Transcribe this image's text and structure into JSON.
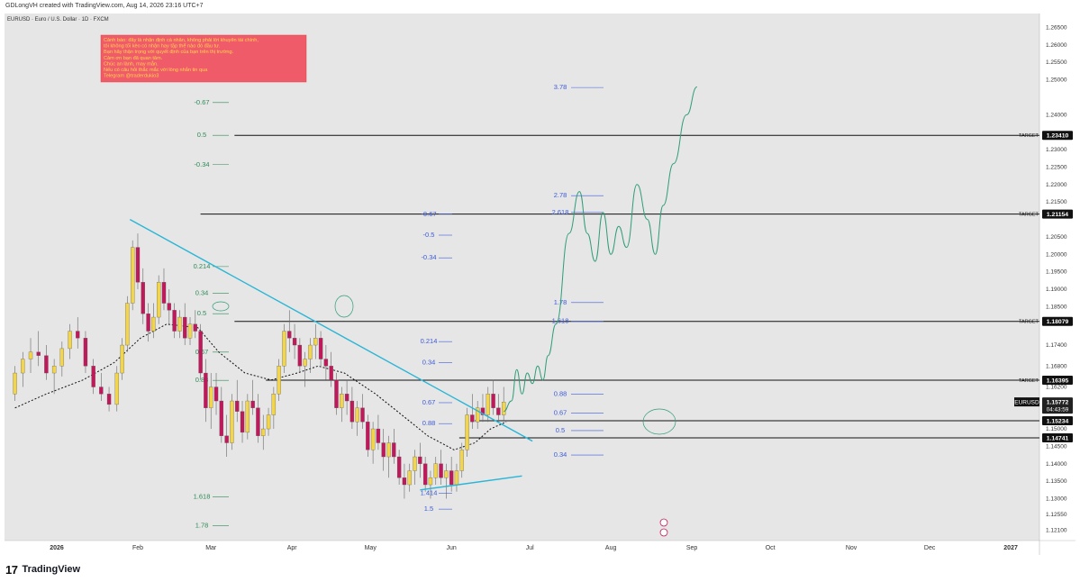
{
  "header": "GDLongVH created with TradingView.com, Aug 14, 2026 23:16 UTC+7",
  "symbol_title": "EURUSD · Euro / U.S. Dollar · 1D · FXCM",
  "warning_lines": [
    "Cảnh báo: đây là nhận định cá nhân, không phải lời khuyên tài chính,",
    "tôi không tối kèo có nhận hay tặp thể nào đó đầu tư.",
    "Bạn hãy thận trọng với quyết định của bạn trên thị trường.",
    "Cảm ơn bạn đã quan tâm.",
    "Chúc an lành, may mắn.",
    "Nếu có câu hỏi thắc mắc với lòng nhắn tin qua",
    "Telegram @traderdukio3"
  ],
  "colors": {
    "bg": "#e6e6e6",
    "up": "#f2d54a",
    "down": "#c2185b",
    "trend": "#29b6d6",
    "proj": "#2e9d77",
    "fib_green": "#2e8b57",
    "fib_blue": "#3b5bdb",
    "warn_bg": "#ef5b68",
    "warn_text": "#ffd54f",
    "ma": "#111111"
  },
  "footer": {
    "brand": "TradingView",
    "logo": "17"
  },
  "chart_data": {
    "type": "candlestick",
    "symbol": "EURUSD",
    "timeframe": "1D",
    "ylim": [
      1.118,
      1.269
    ],
    "x_axis_labels": [
      "2026",
      "Feb",
      "Mar",
      "Apr",
      "May",
      "Jun",
      "Jul",
      "Aug",
      "Sep",
      "Oct",
      "Nov",
      "Dec",
      "2027"
    ],
    "x_axis_label_days": [
      0,
      31,
      59,
      90,
      120,
      151,
      181,
      212,
      243,
      273,
      304,
      334,
      365
    ],
    "y_ticks": [
      "1.26500",
      "1.26000",
      "1.25500",
      "1.25000",
      "1.24000",
      "1.23000",
      "1.22500",
      "1.22000",
      "1.21500",
      "1.20500",
      "1.20000",
      "1.19500",
      "1.19000",
      "1.18500",
      "1.17400",
      "1.16800",
      "1.16200",
      "1.15500",
      "1.15000",
      "1.14500",
      "1.14000",
      "1.13500",
      "1.13000",
      "1.12550",
      "1.12100"
    ],
    "y_tick_values": [
      1.265,
      1.26,
      1.255,
      1.25,
      1.24,
      1.23,
      1.225,
      1.22,
      1.215,
      1.205,
      1.2,
      1.195,
      1.19,
      1.185,
      1.174,
      1.168,
      1.162,
      1.155,
      1.15,
      1.145,
      1.14,
      1.135,
      1.13,
      1.1255,
      1.121
    ],
    "levels": [
      {
        "label": "TARGET",
        "value": "1.23410",
        "day_start": 68
      },
      {
        "label": "TARGET",
        "value": "1.21154",
        "day_start": 55
      },
      {
        "label": "TARGET",
        "value": "1.18079",
        "day_start": 68
      },
      {
        "label": "TARGET",
        "value": "1.16395",
        "day_start": 80
      },
      {
        "label": "",
        "value": "1.15234",
        "day_start": 160
      },
      {
        "label": "",
        "value": "1.14741",
        "day_start": 154
      }
    ],
    "current": {
      "symbol": "EURUSD",
      "price": "1.15772",
      "countdown": "04:43:59"
    },
    "fib_left": [
      {
        "label": "-0.67",
        "price": 1.2435
      },
      {
        "label": "0.5",
        "price": 1.2341
      },
      {
        "label": "-0.34",
        "price": 1.2257
      },
      {
        "label": "0.214",
        "price": 1.1965
      },
      {
        "label": "0.34",
        "price": 1.1888
      },
      {
        "label": "0.5",
        "price": 1.183
      },
      {
        "label": "0.67",
        "price": 1.172
      },
      {
        "label": "0.88",
        "price": 1.1639
      },
      {
        "label": "1.618",
        "price": 1.1305
      },
      {
        "label": "1.78",
        "price": 1.1222
      }
    ],
    "fib_mid": [
      {
        "label": "-0.67",
        "price": 1.2115
      },
      {
        "label": "-0.5",
        "price": 1.2055
      },
      {
        "label": "-0.34",
        "price": 1.199
      },
      {
        "label": "0.214",
        "price": 1.175
      },
      {
        "label": "0.34",
        "price": 1.169
      },
      {
        "label": "0.67",
        "price": 1.1575
      },
      {
        "label": "0.88",
        "price": 1.1515
      },
      {
        "label": "1.414",
        "price": 1.1315
      },
      {
        "label": "1.5",
        "price": 1.127
      }
    ],
    "fib_right": [
      {
        "label": "3.78",
        "price": 1.2478
      },
      {
        "label": "2.78",
        "price": 1.2168
      },
      {
        "label": "2.618",
        "price": 1.212
      },
      {
        "label": "1.78",
        "price": 1.1862
      },
      {
        "label": "1.618",
        "price": 1.1808
      },
      {
        "label": "0.88",
        "price": 1.16
      },
      {
        "label": "0.67",
        "price": 1.1545
      },
      {
        "label": "0.5",
        "price": 1.1495
      },
      {
        "label": "0.34",
        "price": 1.1425
      }
    ],
    "series": [
      {
        "name": "",
        "kind": "candles",
        "values": [
          [
            -16,
            1.16,
            1.168,
            1.158,
            1.166
          ],
          [
            -13,
            1.166,
            1.172,
            1.162,
            1.17
          ],
          [
            -10,
            1.17,
            1.176,
            1.166,
            1.172
          ],
          [
            -7,
            1.172,
            1.178,
            1.168,
            1.171
          ],
          [
            -4,
            1.171,
            1.174,
            1.164,
            1.166
          ],
          [
            -1,
            1.166,
            1.17,
            1.16,
            1.168
          ],
          [
            2,
            1.168,
            1.175,
            1.165,
            1.173
          ],
          [
            5,
            1.173,
            1.18,
            1.17,
            1.178
          ],
          [
            8,
            1.178,
            1.182,
            1.173,
            1.176
          ],
          [
            11,
            1.176,
            1.178,
            1.166,
            1.168
          ],
          [
            14,
            1.168,
            1.17,
            1.16,
            1.162
          ],
          [
            17,
            1.162,
            1.166,
            1.158,
            1.16
          ],
          [
            20,
            1.16,
            1.162,
            1.155,
            1.157
          ],
          [
            23,
            1.157,
            1.168,
            1.155,
            1.166
          ],
          [
            25,
            1.166,
            1.176,
            1.164,
            1.174
          ],
          [
            27,
            1.174,
            1.188,
            1.172,
            1.186
          ],
          [
            29,
            1.186,
            1.204,
            1.184,
            1.202
          ],
          [
            31,
            1.202,
            1.206,
            1.19,
            1.192
          ],
          [
            33,
            1.192,
            1.196,
            1.18,
            1.183
          ],
          [
            35,
            1.183,
            1.186,
            1.175,
            1.178
          ],
          [
            37,
            1.178,
            1.186,
            1.176,
            1.182
          ],
          [
            39,
            1.182,
            1.194,
            1.18,
            1.192
          ],
          [
            41,
            1.192,
            1.196,
            1.184,
            1.186
          ],
          [
            43,
            1.186,
            1.19,
            1.18,
            1.184
          ],
          [
            45,
            1.184,
            1.186,
            1.176,
            1.178
          ],
          [
            47,
            1.178,
            1.184,
            1.176,
            1.182
          ],
          [
            49,
            1.182,
            1.186,
            1.174,
            1.176
          ],
          [
            51,
            1.176,
            1.182,
            1.174,
            1.18
          ],
          [
            53,
            1.18,
            1.184,
            1.176,
            1.178
          ],
          [
            55,
            1.178,
            1.18,
            1.164,
            1.166
          ],
          [
            57,
            1.166,
            1.17,
            1.152,
            1.156
          ],
          [
            59,
            1.156,
            1.166,
            1.15,
            1.162
          ],
          [
            61,
            1.162,
            1.166,
            1.154,
            1.158
          ],
          [
            63,
            1.158,
            1.162,
            1.146,
            1.148
          ],
          [
            65,
            1.148,
            1.154,
            1.142,
            1.146
          ],
          [
            67,
            1.146,
            1.16,
            1.144,
            1.158
          ],
          [
            69,
            1.158,
            1.164,
            1.152,
            1.155
          ],
          [
            71,
            1.155,
            1.158,
            1.146,
            1.149
          ],
          [
            73,
            1.149,
            1.16,
            1.147,
            1.158
          ],
          [
            75,
            1.158,
            1.164,
            1.154,
            1.156
          ],
          [
            77,
            1.156,
            1.16,
            1.146,
            1.148
          ],
          [
            79,
            1.148,
            1.154,
            1.144,
            1.15
          ],
          [
            81,
            1.15,
            1.156,
            1.148,
            1.154
          ],
          [
            83,
            1.154,
            1.162,
            1.15,
            1.16
          ],
          [
            85,
            1.16,
            1.17,
            1.158,
            1.168
          ],
          [
            87,
            1.168,
            1.18,
            1.166,
            1.178
          ],
          [
            89,
            1.178,
            1.184,
            1.172,
            1.176
          ],
          [
            91,
            1.176,
            1.18,
            1.17,
            1.174
          ],
          [
            93,
            1.174,
            1.176,
            1.166,
            1.168
          ],
          [
            95,
            1.168,
            1.172,
            1.162,
            1.17
          ],
          [
            97,
            1.17,
            1.176,
            1.166,
            1.174
          ],
          [
            99,
            1.174,
            1.18,
            1.17,
            1.176
          ],
          [
            101,
            1.176,
            1.178,
            1.168,
            1.17
          ],
          [
            103,
            1.17,
            1.174,
            1.164,
            1.168
          ],
          [
            105,
            1.168,
            1.172,
            1.162,
            1.164
          ],
          [
            107,
            1.164,
            1.166,
            1.154,
            1.156
          ],
          [
            109,
            1.156,
            1.162,
            1.152,
            1.16
          ],
          [
            111,
            1.16,
            1.164,
            1.154,
            1.158
          ],
          [
            113,
            1.158,
            1.162,
            1.15,
            1.152
          ],
          [
            115,
            1.152,
            1.158,
            1.148,
            1.156
          ],
          [
            117,
            1.156,
            1.16,
            1.15,
            1.152
          ],
          [
            119,
            1.152,
            1.154,
            1.142,
            1.144
          ],
          [
            121,
            1.144,
            1.152,
            1.14,
            1.15
          ],
          [
            123,
            1.15,
            1.154,
            1.144,
            1.146
          ],
          [
            125,
            1.146,
            1.15,
            1.138,
            1.142
          ],
          [
            127,
            1.142,
            1.148,
            1.136,
            1.146
          ],
          [
            129,
            1.146,
            1.15,
            1.14,
            1.142
          ],
          [
            131,
            1.142,
            1.144,
            1.134,
            1.136
          ],
          [
            133,
            1.136,
            1.14,
            1.13,
            1.134
          ],
          [
            135,
            1.134,
            1.14,
            1.132,
            1.138
          ],
          [
            137,
            1.138,
            1.144,
            1.134,
            1.142
          ],
          [
            139,
            1.142,
            1.146,
            1.136,
            1.14
          ],
          [
            141,
            1.14,
            1.142,
            1.132,
            1.134
          ],
          [
            143,
            1.134,
            1.138,
            1.13,
            1.136
          ],
          [
            145,
            1.136,
            1.142,
            1.134,
            1.14
          ],
          [
            147,
            1.14,
            1.144,
            1.134,
            1.136
          ],
          [
            149,
            1.136,
            1.14,
            1.13,
            1.138
          ],
          [
            151,
            1.138,
            1.142,
            1.132,
            1.134
          ],
          [
            153,
            1.134,
            1.14,
            1.132,
            1.138
          ],
          [
            155,
            1.138,
            1.146,
            1.136,
            1.144
          ],
          [
            157,
            1.144,
            1.156,
            1.142,
            1.154
          ],
          [
            159,
            1.154,
            1.16,
            1.15,
            1.152
          ],
          [
            161,
            1.152,
            1.158,
            1.15,
            1.156
          ],
          [
            163,
            1.156,
            1.16,
            1.152,
            1.154
          ],
          [
            165,
            1.154,
            1.162,
            1.152,
            1.16
          ],
          [
            167,
            1.16,
            1.164,
            1.154,
            1.156
          ],
          [
            169,
            1.156,
            1.16,
            1.152,
            1.154
          ],
          [
            171,
            1.154,
            1.162,
            1.152,
            1.1577
          ]
        ]
      },
      {
        "name": "",
        "kind": "ma",
        "points": [
          [
            -16,
            1.156
          ],
          [
            -4,
            1.16
          ],
          [
            10,
            1.164
          ],
          [
            22,
            1.169
          ],
          [
            32,
            1.176
          ],
          [
            42,
            1.18
          ],
          [
            54,
            1.179
          ],
          [
            62,
            1.172
          ],
          [
            72,
            1.166
          ],
          [
            82,
            1.164
          ],
          [
            92,
            1.166
          ],
          [
            100,
            1.168
          ],
          [
            110,
            1.166
          ],
          [
            122,
            1.16
          ],
          [
            132,
            1.154
          ],
          [
            142,
            1.148
          ],
          [
            152,
            1.144
          ],
          [
            160,
            1.146
          ],
          [
            166,
            1.15
          ],
          [
            172,
            1.152
          ]
        ]
      },
      {
        "name": "",
        "kind": "projection",
        "points": [
          [
            171,
            1.155
          ],
          [
            174,
            1.158
          ],
          [
            176,
            1.167
          ],
          [
            178,
            1.16
          ],
          [
            180,
            1.166
          ],
          [
            182,
            1.163
          ],
          [
            184,
            1.168
          ],
          [
            186,
            1.164
          ],
          [
            188,
            1.171
          ],
          [
            191,
            1.18
          ],
          [
            196,
            1.206
          ],
          [
            200,
            1.218
          ],
          [
            203,
            1.206
          ],
          [
            206,
            1.198
          ],
          [
            209,
            1.212
          ],
          [
            212,
            1.2
          ],
          [
            215,
            1.208
          ],
          [
            218,
            1.202
          ],
          [
            222,
            1.22
          ],
          [
            226,
            1.21
          ],
          [
            229,
            1.2
          ],
          [
            232,
            1.214
          ],
          [
            236,
            1.226
          ],
          [
            241,
            1.24
          ],
          [
            245,
            1.248
          ]
        ]
      }
    ],
    "trendlines": [
      {
        "from": [
          28,
          1.21
        ],
        "to": [
          182,
          1.1465
        ]
      },
      {
        "from": [
          139,
          1.1325
        ],
        "to": [
          178,
          1.1365
        ]
      }
    ]
  }
}
